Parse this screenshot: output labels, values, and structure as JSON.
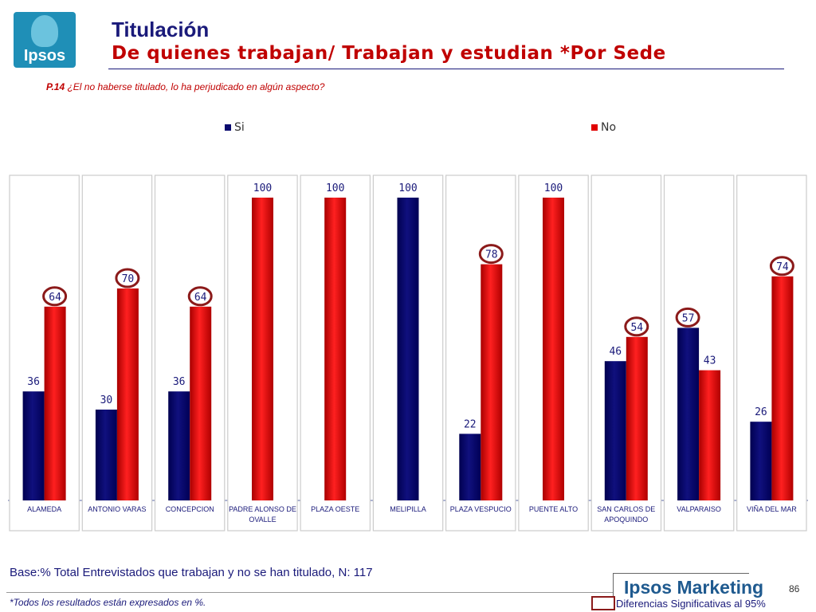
{
  "header": {
    "logo_text": "Ipsos",
    "title": "Titulación",
    "subtitle": "De quienes trabajan/ Trabajan y estudian *Por Sede",
    "question_code": "P.14",
    "question_text": " ¿El no haberse titulado, lo ha perjudicado en algún aspecto?"
  },
  "legend": {
    "si": "Si",
    "no": "No"
  },
  "colors": {
    "si": "#0a0a6e",
    "no": "#e00000",
    "circle": "#8b1a1a",
    "panel_border": "#cccccc"
  },
  "chart_data": {
    "type": "bar",
    "categories": [
      "ALAMEDA",
      "ANTONIO VARAS",
      "CONCEPCION",
      "PADRE ALONSO DE OVALLE",
      "PLAZA OESTE",
      "MELIPILLA",
      "PLAZA VESPUCIO",
      "PUENTE ALTO",
      "SAN CARLOS DE APOQUINDO",
      "VALPARAISO",
      "VIÑA DEL MAR"
    ],
    "category_labels": [
      [
        "ALAMEDA"
      ],
      [
        "ANTONIO VARAS"
      ],
      [
        "CONCEPCION"
      ],
      [
        "PADRE ALONSO DE",
        "OVALLE"
      ],
      [
        "PLAZA OESTE"
      ],
      [
        "MELIPILLA"
      ],
      [
        "PLAZA VESPUCIO"
      ],
      [
        "PUENTE ALTO"
      ],
      [
        "SAN CARLOS DE",
        "APOQUINDO"
      ],
      [
        "VALPARAISO"
      ],
      [
        "VIÑA DEL MAR"
      ]
    ],
    "series": [
      {
        "name": "Si",
        "values": [
          36,
          30,
          36,
          null,
          null,
          100,
          22,
          null,
          46,
          57,
          26
        ]
      },
      {
        "name": "No",
        "values": [
          64,
          70,
          64,
          100,
          100,
          null,
          78,
          100,
          54,
          43,
          74
        ]
      }
    ],
    "circled": {
      "Si": [
        false,
        false,
        false,
        false,
        false,
        false,
        false,
        false,
        false,
        true,
        false
      ],
      "No": [
        true,
        true,
        true,
        false,
        false,
        false,
        true,
        false,
        true,
        false,
        true
      ]
    },
    "ylim": [
      0,
      100
    ],
    "legend_position": "top",
    "grid": false
  },
  "footer": {
    "base": "Base:% Total Entrevistados que  trabajan y no se han titulado, N: 117",
    "note": "*Todos los resultados están expresados en %.",
    "brand": "Ipsos Marketing",
    "page_number": "86",
    "significance_label": "Diferencias Significativas al 95%"
  }
}
